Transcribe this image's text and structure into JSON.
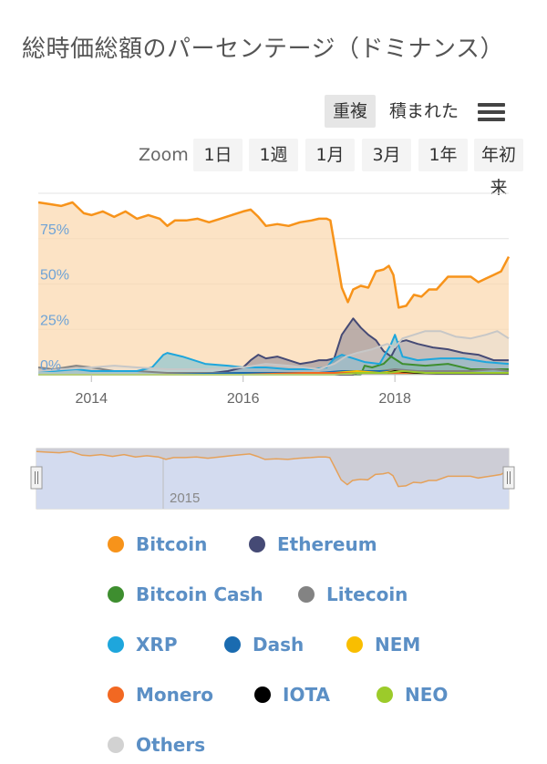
{
  "title": "総時価総額のパーセンテージ（ドミナンス）",
  "toolbar": {
    "overlap_label": "重複",
    "stacked_label": "積まれた",
    "menu_icon": "hamburger-menu-icon"
  },
  "zoom": {
    "label": "Zoom",
    "buttons": [
      "1日",
      "1週",
      "1月",
      "3月",
      "1年",
      "年初来"
    ]
  },
  "chart_data": {
    "type": "area",
    "title": "総時価総額のパーセンテージ（ドミナンス）",
    "xlabel": "",
    "ylabel": "",
    "x_range": [
      2013.3,
      2019.5
    ],
    "ylim": [
      0,
      100
    ],
    "y_ticks": [
      "0%",
      "25%",
      "50%",
      "75%"
    ],
    "x_ticks": [
      "2014",
      "2016",
      "2018"
    ],
    "grid": true,
    "legend_position": "bottom",
    "navigator_label": "2015",
    "series": [
      {
        "name": "Bitcoin",
        "color": "#f7931a",
        "x": [
          2013.3,
          2013.45,
          2013.6,
          2013.75,
          2013.9,
          2014.0,
          2014.15,
          2014.3,
          2014.45,
          2014.6,
          2014.75,
          2014.9,
          2015.0,
          2015.1,
          2015.25,
          2015.4,
          2015.55,
          2015.7,
          2015.85,
          2016.0,
          2016.1,
          2016.2,
          2016.3,
          2016.45,
          2016.6,
          2016.75,
          2016.9,
          2017.0,
          2017.1,
          2017.15,
          2017.22,
          2017.3,
          2017.38,
          2017.45,
          2017.55,
          2017.65,
          2017.75,
          2017.85,
          2017.92,
          2017.98,
          2018.05,
          2018.15,
          2018.25,
          2018.35,
          2018.45,
          2018.55,
          2018.7,
          2018.85,
          2019.0,
          2019.1,
          2019.2,
          2019.3,
          2019.4,
          2019.5
        ],
        "y": [
          95,
          94,
          93,
          95,
          89,
          88,
          90,
          87,
          90,
          86,
          88,
          86,
          82,
          85,
          85,
          86,
          84,
          86,
          88,
          90,
          91,
          87,
          82,
          83,
          82,
          84,
          85,
          86,
          86,
          85,
          68,
          48,
          40,
          47,
          49,
          48,
          57,
          58,
          60,
          55,
          37,
          38,
          44,
          43,
          47,
          47,
          54,
          54,
          54,
          51,
          53,
          55,
          57,
          65
        ]
      },
      {
        "name": "Ethereum",
        "color": "#454a75",
        "x": [
          2013.3,
          2014.0,
          2015.0,
          2015.6,
          2015.8,
          2016.0,
          2016.1,
          2016.2,
          2016.3,
          2016.45,
          2016.6,
          2016.75,
          2016.9,
          2017.0,
          2017.1,
          2017.2,
          2017.3,
          2017.4,
          2017.45,
          2017.55,
          2017.65,
          2017.75,
          2017.85,
          2017.95,
          2018.05,
          2018.15,
          2018.3,
          2018.5,
          2018.7,
          2018.9,
          2019.1,
          2019.3,
          2019.5
        ],
        "y": [
          0,
          0,
          0,
          1,
          2,
          4,
          8,
          11,
          9,
          10,
          8,
          6,
          7,
          8,
          8,
          9,
          22,
          28,
          31,
          26,
          22,
          19,
          13,
          10,
          18,
          19,
          17,
          15,
          14,
          12,
          11,
          8,
          8
        ]
      },
      {
        "name": "Bitcoin Cash",
        "color": "#3e8e2f",
        "x": [
          2013.3,
          2017.55,
          2017.6,
          2017.7,
          2017.85,
          2017.95,
          2018.1,
          2018.4,
          2018.7,
          2019.0,
          2019.5
        ],
        "y": [
          0,
          0,
          5,
          4,
          6,
          10,
          6,
          5,
          6,
          3,
          3
        ]
      },
      {
        "name": "Litecoin",
        "color": "#838383",
        "x": [
          2013.3,
          2013.5,
          2013.8,
          2014.0,
          2014.3,
          2014.6,
          2015.0,
          2015.5,
          2016.0,
          2016.5,
          2017.0,
          2017.4,
          2017.8,
          2018.0,
          2018.3,
          2018.6,
          2019.0,
          2019.3,
          2019.5
        ],
        "y": [
          4,
          3,
          5,
          4,
          2,
          2,
          1,
          1,
          1,
          1,
          1,
          2,
          2,
          3,
          2,
          2,
          2,
          3,
          2
        ]
      },
      {
        "name": "XRP",
        "color": "#1ea6dc",
        "x": [
          2013.3,
          2013.5,
          2013.8,
          2014.0,
          2014.3,
          2014.6,
          2014.8,
          2014.95,
          2015.0,
          2015.2,
          2015.5,
          2015.8,
          2016.0,
          2016.3,
          2016.6,
          2016.9,
          2017.1,
          2017.2,
          2017.3,
          2017.45,
          2017.6,
          2017.8,
          2017.95,
          2018.0,
          2018.1,
          2018.3,
          2018.6,
          2018.9,
          2019.2,
          2019.5
        ],
        "y": [
          2,
          2,
          3,
          2,
          2,
          2,
          4,
          11,
          12,
          10,
          6,
          5,
          4,
          4,
          3,
          3,
          4,
          9,
          11,
          9,
          7,
          6,
          17,
          22,
          10,
          8,
          9,
          9,
          7,
          6
        ]
      },
      {
        "name": "Dash",
        "color": "#1a6bb0",
        "x": [
          2013.3,
          2015.0,
          2016.0,
          2016.5,
          2017.0,
          2017.3,
          2017.6,
          2017.9,
          2018.2,
          2018.6,
          2019.0,
          2019.5
        ],
        "y": [
          0,
          0,
          1,
          1,
          1,
          2,
          2,
          2,
          1,
          1,
          1,
          1
        ]
      },
      {
        "name": "NEM",
        "color": "#f9be00",
        "x": [
          2013.3,
          2015.2,
          2016.0,
          2016.8,
          2017.2,
          2017.5,
          2017.8,
          2018.0,
          2018.4,
          2018.8,
          2019.5
        ],
        "y": [
          0,
          0,
          0,
          0,
          1,
          2,
          1,
          2,
          1,
          0.5,
          0.5
        ]
      },
      {
        "name": "Monero",
        "color": "#f26822",
        "x": [
          2013.3,
          2014.3,
          2015.0,
          2016.0,
          2016.8,
          2017.3,
          2017.8,
          2018.2,
          2018.8,
          2019.5
        ],
        "y": [
          0,
          0,
          0,
          0,
          1,
          1,
          1,
          1,
          1,
          1
        ]
      },
      {
        "name": "IOTA",
        "color": "#000000",
        "x": [
          2013.3,
          2017.45,
          2017.5,
          2017.9,
          2018.0,
          2018.3,
          2018.8,
          2019.5
        ],
        "y": [
          0,
          0,
          1,
          1,
          2,
          1,
          0.5,
          0.5
        ]
      },
      {
        "name": "NEO",
        "color": "#9ccb2a",
        "x": [
          2013.3,
          2017.2,
          2017.5,
          2017.9,
          2018.1,
          2018.4,
          2018.8,
          2019.5
        ],
        "y": [
          0,
          0,
          1,
          1,
          2,
          1,
          1,
          1
        ]
      },
      {
        "name": "Others",
        "color": "#d2d2d2",
        "x": [
          2013.3,
          2013.6,
          2014.0,
          2014.3,
          2014.6,
          2015.0,
          2015.5,
          2016.0,
          2016.3,
          2016.6,
          2017.0,
          2017.2,
          2017.35,
          2017.5,
          2017.7,
          2017.9,
          2018.0,
          2018.1,
          2018.25,
          2018.4,
          2018.6,
          2018.8,
          2019.0,
          2019.2,
          2019.35,
          2019.5
        ],
        "y": [
          2,
          3,
          4,
          5,
          4,
          3,
          3,
          4,
          6,
          5,
          3,
          6,
          10,
          12,
          14,
          17,
          15,
          20,
          22,
          24,
          24,
          21,
          20,
          22,
          24,
          20
        ]
      }
    ]
  }
}
